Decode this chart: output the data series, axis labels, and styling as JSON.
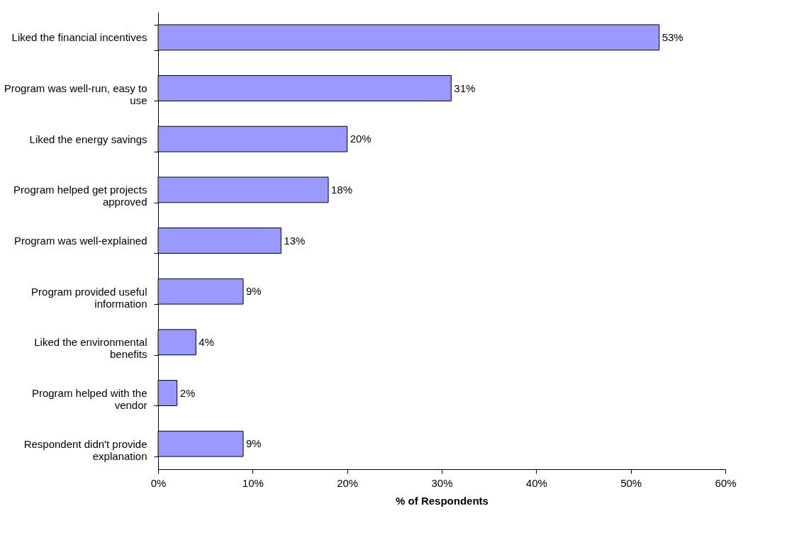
{
  "chart_data": {
    "type": "bar",
    "orientation": "horizontal",
    "xlabel": "% of Respondents",
    "categories": [
      "Liked the financial incentives",
      "Program was well-run, easy to use",
      "Liked the energy savings",
      "Program helped get projects approved",
      "Program was well-explained",
      "Program provided useful information",
      "Liked the environmental benefits",
      "Program helped with the vendor",
      "Respondent didn't provide explanation"
    ],
    "values": [
      53,
      31,
      20,
      18,
      13,
      9,
      4,
      2,
      9
    ],
    "value_labels": [
      "53%",
      "31%",
      "20%",
      "18%",
      "13%",
      "9%",
      "4%",
      "2%",
      "9%"
    ],
    "color": "#9999ff",
    "xlim": [
      0,
      60
    ],
    "xticks": [
      {
        "value": 0,
        "label": "0%"
      },
      {
        "value": 10,
        "label": "10%"
      },
      {
        "value": 20,
        "label": "20%"
      },
      {
        "value": 30,
        "label": "30%"
      },
      {
        "value": 40,
        "label": "40%"
      },
      {
        "value": 50,
        "label": "50%"
      },
      {
        "value": 60,
        "label": "60%"
      }
    ],
    "grid": false
  }
}
